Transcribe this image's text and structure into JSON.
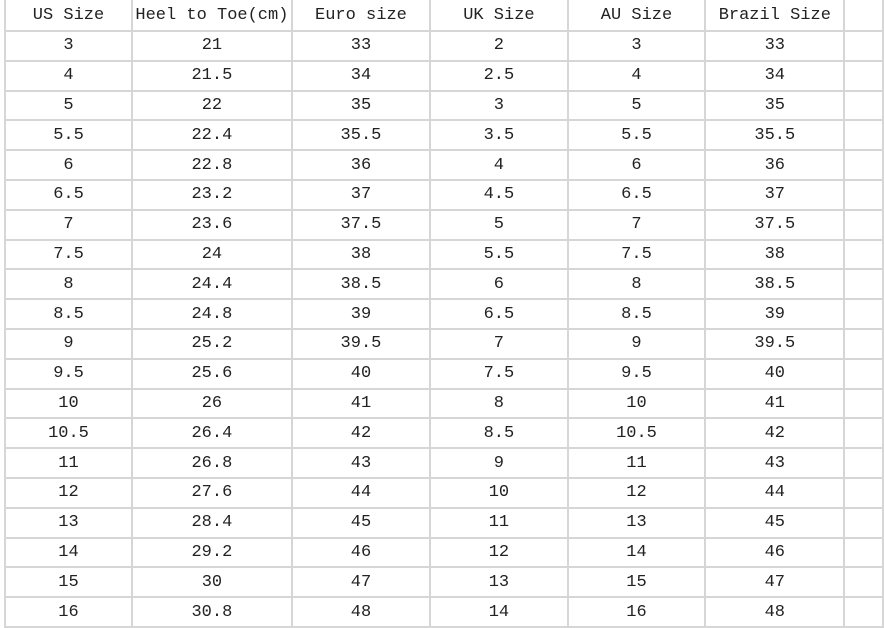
{
  "table": {
    "headers": [
      "US Size",
      "Heel to Toe(cm)",
      "Euro size",
      "UK Size",
      "AU Size",
      "Brazil Size"
    ],
    "rows": [
      [
        "3",
        "21",
        "33",
        "2",
        "3",
        "33"
      ],
      [
        "4",
        "21.5",
        "34",
        "2.5",
        "4",
        "34"
      ],
      [
        "5",
        "22",
        "35",
        "3",
        "5",
        "35"
      ],
      [
        "5.5",
        "22.4",
        "35.5",
        "3.5",
        "5.5",
        "35.5"
      ],
      [
        "6",
        "22.8",
        "36",
        "4",
        "6",
        "36"
      ],
      [
        "6.5",
        "23.2",
        "37",
        "4.5",
        "6.5",
        "37"
      ],
      [
        "7",
        "23.6",
        "37.5",
        "5",
        "7",
        "37.5"
      ],
      [
        "7.5",
        "24",
        "38",
        "5.5",
        "7.5",
        "38"
      ],
      [
        "8",
        "24.4",
        "38.5",
        "6",
        "8",
        "38.5"
      ],
      [
        "8.5",
        "24.8",
        "39",
        "6.5",
        "8.5",
        "39"
      ],
      [
        "9",
        "25.2",
        "39.5",
        "7",
        "9",
        "39.5"
      ],
      [
        "9.5",
        "25.6",
        "40",
        "7.5",
        "9.5",
        "40"
      ],
      [
        "10",
        "26",
        "41",
        "8",
        "10",
        "41"
      ],
      [
        "10.5",
        "26.4",
        "42",
        "8.5",
        "10.5",
        "42"
      ],
      [
        "11",
        "26.8",
        "43",
        "9",
        "11",
        "43"
      ],
      [
        "12",
        "27.6",
        "44",
        "10",
        "12",
        "44"
      ],
      [
        "13",
        "28.4",
        "45",
        "11",
        "13",
        "45"
      ],
      [
        "14",
        "29.2",
        "46",
        "12",
        "14",
        "46"
      ],
      [
        "15",
        "30",
        "47",
        "13",
        "15",
        "47"
      ],
      [
        "16",
        "30.8",
        "48",
        "14",
        "16",
        "48"
      ]
    ]
  }
}
